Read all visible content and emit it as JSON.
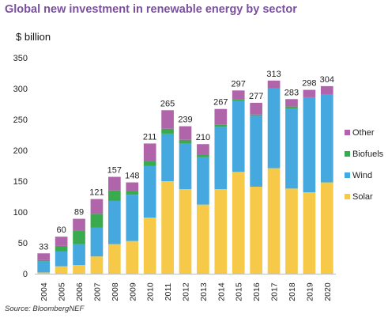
{
  "chart_data": {
    "type": "bar",
    "stacked": true,
    "title": "Global new investment in renewable energy by sector",
    "ylabel": "$ billion",
    "xlabel": "",
    "ylim": [
      0,
      350
    ],
    "yticks": [
      0,
      50,
      100,
      150,
      200,
      250,
      300,
      350
    ],
    "categories": [
      "2004",
      "2005",
      "2006",
      "2007",
      "2008",
      "2009",
      "2010",
      "2011",
      "2012",
      "2013",
      "2014",
      "2015",
      "2016",
      "2017",
      "2018",
      "2019",
      "2020"
    ],
    "series": [
      {
        "name": "Solar",
        "color": "#f7c948",
        "values": [
          2,
          12,
          14,
          28,
          48,
          53,
          91,
          150,
          137,
          112,
          137,
          165,
          141,
          171,
          138,
          132,
          148
        ]
      },
      {
        "name": "Wind",
        "color": "#45a8de",
        "values": [
          18,
          24,
          34,
          47,
          70,
          75,
          84,
          77,
          74,
          77,
          101,
          115,
          115,
          129,
          130,
          153,
          142
        ]
      },
      {
        "name": "Biofuels",
        "color": "#3aaa4e",
        "values": [
          2,
          9,
          22,
          22,
          17,
          6,
          7,
          8,
          6,
          4,
          4,
          3,
          2,
          1,
          3,
          1,
          1
        ]
      },
      {
        "name": "Other",
        "color": "#b065aa",
        "values": [
          11,
          15,
          19,
          24,
          22,
          14,
          29,
          30,
          22,
          17,
          25,
          14,
          19,
          12,
          12,
          12,
          13
        ]
      }
    ],
    "totals": [
      33,
      60,
      89,
      121,
      157,
      148,
      211,
      265,
      239,
      210,
      267,
      297,
      277,
      313,
      283,
      298,
      304
    ],
    "legend_order": [
      "Other",
      "Biofuels",
      "Wind",
      "Solar"
    ],
    "legend_position": "right",
    "grid": false,
    "source": "Source: BloombergNEF"
  }
}
